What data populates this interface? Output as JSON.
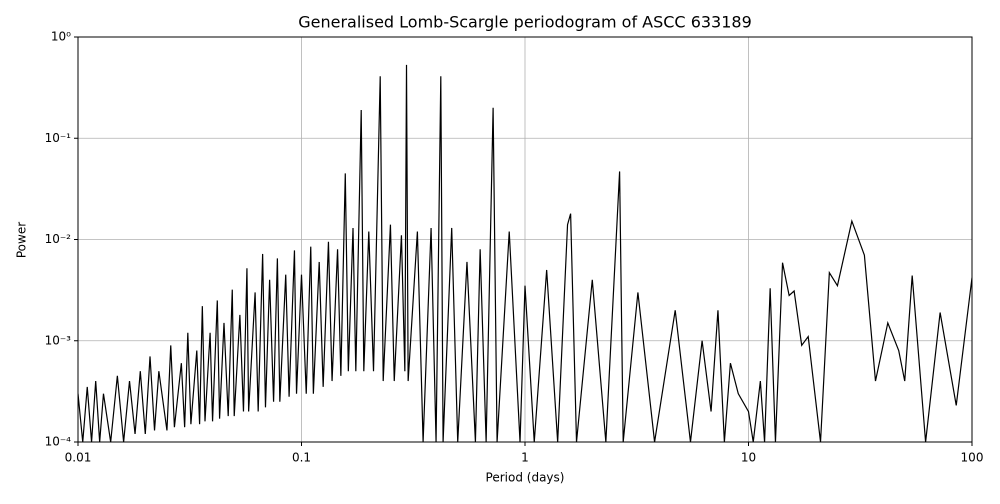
{
  "chart_data": {
    "type": "line",
    "title": "Generalised Lomb-Scargle periodogram of ASCC 633189",
    "xlabel": "Period (days)",
    "ylabel": "Power",
    "xscale": "log",
    "yscale": "log",
    "grid": true,
    "xlim": [
      0.01,
      100
    ],
    "ylim": [
      0.0001,
      1
    ],
    "xticks": [
      0.01,
      0.1,
      1,
      10,
      100
    ],
    "yticks": [
      {
        "value": 0.0001,
        "label": "10⁻⁴"
      },
      {
        "value": 0.001,
        "label": "10⁻³"
      },
      {
        "value": 0.01,
        "label": "10⁻²"
      },
      {
        "value": 0.1,
        "label": "10⁻¹"
      },
      {
        "value": 1,
        "label": "10⁰"
      }
    ],
    "series": [
      {
        "color": "#000000",
        "x": [
          0.01,
          0.0105,
          0.011,
          0.0115,
          0.012,
          0.0125,
          0.013,
          0.014,
          0.015,
          0.016,
          0.017,
          0.018,
          0.019,
          0.02,
          0.021,
          0.022,
          0.023,
          0.025,
          0.026,
          0.027,
          0.029,
          0.03,
          0.031,
          0.032,
          0.034,
          0.035,
          0.036,
          0.037,
          0.039,
          0.04,
          0.042,
          0.043,
          0.045,
          0.047,
          0.049,
          0.05,
          0.053,
          0.055,
          0.057,
          0.058,
          0.062,
          0.064,
          0.067,
          0.069,
          0.072,
          0.075,
          0.078,
          0.08,
          0.085,
          0.088,
          0.093,
          0.095,
          0.1,
          0.105,
          0.11,
          0.113,
          0.12,
          0.125,
          0.132,
          0.137,
          0.145,
          0.15,
          0.157,
          0.162,
          0.17,
          0.175,
          0.185,
          0.19,
          0.2,
          0.21,
          0.225,
          0.232,
          0.25,
          0.26,
          0.28,
          0.29,
          0.295,
          0.3,
          0.33,
          0.35,
          0.38,
          0.4,
          0.42,
          0.43,
          0.47,
          0.5,
          0.55,
          0.6,
          0.63,
          0.67,
          0.72,
          0.75,
          0.85,
          0.95,
          1.0,
          1.1,
          1.25,
          1.4,
          1.55,
          1.6,
          1.7,
          2.0,
          2.3,
          2.65,
          2.75,
          3.2,
          3.8,
          4.7,
          5.5,
          6.2,
          6.8,
          7.3,
          7.8,
          8.3,
          9.0,
          10,
          10.5,
          11.3,
          11.8,
          12.5,
          13.2,
          14.2,
          15.2,
          16,
          17.3,
          18.5,
          21,
          23,
          25,
          29,
          33,
          37,
          42,
          47,
          50,
          54,
          62,
          72,
          85,
          100
        ],
        "values": [
          0.0003,
          0.0001,
          0.00035,
          0.0001,
          0.0004,
          0.0001,
          0.0003,
          0.0001,
          0.00045,
          0.0001,
          0.0004,
          0.00012,
          0.0005,
          0.00012,
          0.0007,
          0.00013,
          0.0005,
          0.00013,
          0.0009,
          0.00014,
          0.0006,
          0.00014,
          0.0012,
          0.00015,
          0.0008,
          0.00015,
          0.0022,
          0.00016,
          0.0012,
          0.00016,
          0.0025,
          0.00017,
          0.0015,
          0.00018,
          0.0032,
          0.00018,
          0.0018,
          0.0002,
          0.0052,
          0.0002,
          0.003,
          0.0002,
          0.0072,
          0.00022,
          0.004,
          0.00025,
          0.0065,
          0.00025,
          0.0045,
          0.00028,
          0.0078,
          0.0003,
          0.0045,
          0.0003,
          0.0085,
          0.0003,
          0.006,
          0.00035,
          0.0095,
          0.0004,
          0.008,
          0.00045,
          0.045,
          0.0005,
          0.013,
          0.0005,
          0.19,
          0.0005,
          0.012,
          0.0005,
          0.41,
          0.0004,
          0.014,
          0.0004,
          0.011,
          0.0005,
          0.53,
          0.0004,
          0.012,
          0.0001,
          0.013,
          0.0001,
          0.41,
          0.0001,
          0.013,
          0.0001,
          0.006,
          0.0001,
          0.008,
          0.0001,
          0.2,
          0.0001,
          0.012,
          0.0001,
          0.0035,
          0.0001,
          0.005,
          0.0001,
          0.014,
          0.018,
          0.0001,
          0.004,
          0.0001,
          0.047,
          0.0001,
          0.003,
          0.0001,
          0.002,
          0.0001,
          0.001,
          0.0002,
          0.002,
          0.0001,
          0.0006,
          0.0003,
          0.0002,
          0.0001,
          0.0004,
          0.0001,
          0.0033,
          0.0001,
          0.0059,
          0.0028,
          0.0031,
          0.0009,
          0.0011,
          0.0001,
          0.0047,
          0.0035,
          0.0152,
          0.007,
          0.0004,
          0.0015,
          0.0008,
          0.0004,
          0.0044,
          0.0001,
          0.0019,
          0.00023,
          0.0042
        ]
      }
    ]
  }
}
